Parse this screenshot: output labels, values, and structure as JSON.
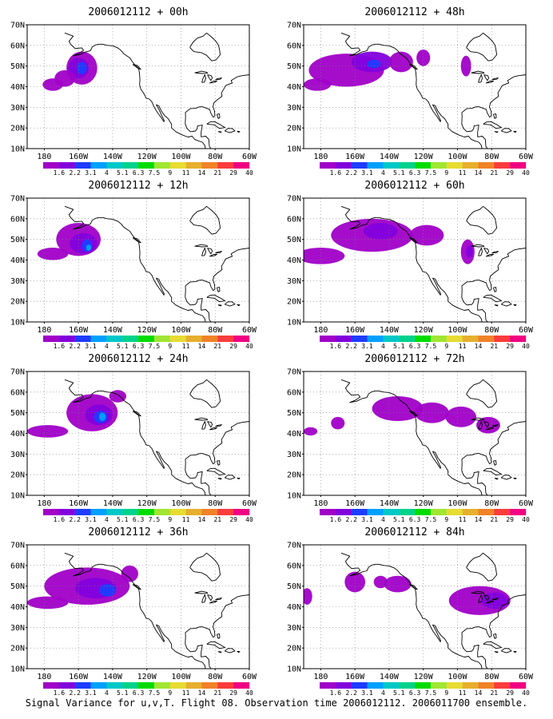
{
  "caption": "Signal Variance for u,v,T. Flight 08. Observation time 2006012112. 2006011700 ensemble.",
  "lat_labels": [
    "10N",
    "20N",
    "30N",
    "40N",
    "50N",
    "60N",
    "70N"
  ],
  "lon_labels": [
    "180",
    "160W",
    "140W",
    "120W",
    "100W",
    "80W",
    "60W"
  ],
  "colorbar": {
    "labels": [
      "1.6",
      "2.2",
      "3.1",
      "4",
      "5.1",
      "6.3",
      "7.5",
      "9",
      "11",
      "14",
      "21",
      "29",
      "40"
    ],
    "colors": [
      "#a000c8",
      "#8200dc",
      "#1e3cff",
      "#00a0ff",
      "#00c8c8",
      "#00d28c",
      "#00dc00",
      "#a0e632",
      "#e6dc32",
      "#e6af2d",
      "#f08228",
      "#fa3c3c",
      "#f00082"
    ]
  },
  "map_extent": {
    "lon_min": -190,
    "lon_max": -60,
    "lat_min": 10,
    "lat_max": 70
  },
  "panels": [
    {
      "title": "2006012112 + 00h"
    },
    {
      "title": "2006012112 + 48h"
    },
    {
      "title": "2006012112 + 12h"
    },
    {
      "title": "2006012112 + 60h"
    },
    {
      "title": "2006012112 + 24h"
    },
    {
      "title": "2006012112 + 72h"
    },
    {
      "title": "2006012112 + 36h"
    },
    {
      "title": "2006012112 + 84h"
    }
  ]
}
